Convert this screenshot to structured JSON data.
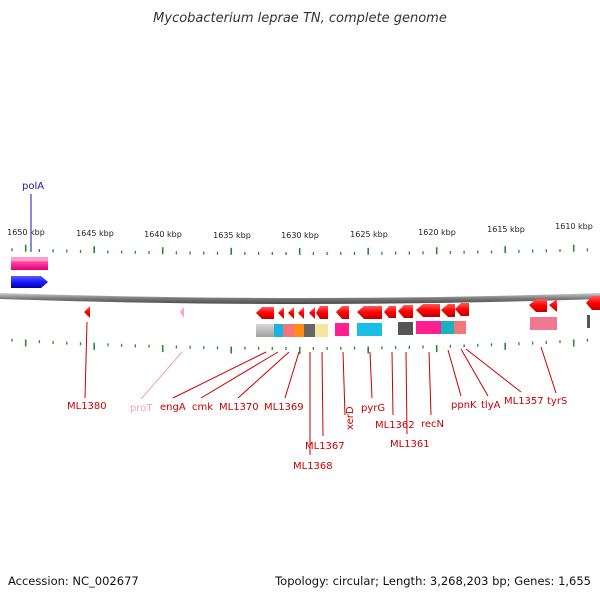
{
  "title": "Mycobacterium leprae TN, complete genome",
  "footer": {
    "accession": "Accession: NC_002677",
    "topology": "Topology: circular; Length: 3,268,203 bp; Genes: 1,655"
  },
  "colors": {
    "tick": "#2a8a2a",
    "backbone": "#7f7f7f",
    "forward_gene": "#1a1aff",
    "reverse_gene": "#ff0000",
    "label_red": "#cc0000",
    "label_blue": "#1a1aaa",
    "label_pink": "#f2a0c0"
  },
  "scale": {
    "ticks": [
      {
        "label": "1650 kbp"
      },
      {
        "label": "1645 kbp"
      },
      {
        "label": "1640 kbp"
      },
      {
        "label": "1635 kbp"
      },
      {
        "label": "1630 kbp"
      },
      {
        "label": "1625 kbp"
      },
      {
        "label": "1620 kbp"
      },
      {
        "label": "1615 kbp"
      },
      {
        "label": "1610 kbp"
      }
    ]
  },
  "genes": [
    {
      "name": "polA",
      "color": "#1a1aaa"
    },
    {
      "name": "ML1380",
      "color": "#cc0000"
    },
    {
      "name": "proT",
      "color": "#f2a0c0"
    },
    {
      "name": "engA",
      "color": "#cc0000"
    },
    {
      "name": "cmk",
      "color": "#cc0000"
    },
    {
      "name": "ML1370",
      "color": "#cc0000"
    },
    {
      "name": "ML1369",
      "color": "#cc0000"
    },
    {
      "name": "ML1367",
      "color": "#cc0000"
    },
    {
      "name": "ML1368",
      "color": "#cc0000"
    },
    {
      "name": "xerD",
      "color": "#cc0000"
    },
    {
      "name": "pyrG",
      "color": "#cc0000"
    },
    {
      "name": "ML1362",
      "color": "#cc0000"
    },
    {
      "name": "ML1361",
      "color": "#cc0000"
    },
    {
      "name": "recN",
      "color": "#cc0000"
    },
    {
      "name": "ppnK",
      "color": "#cc0000"
    },
    {
      "name": "tlyA",
      "color": "#cc0000"
    },
    {
      "name": "ML1357",
      "color": "#cc0000"
    },
    {
      "name": "tyrS",
      "color": "#cc0000"
    }
  ]
}
